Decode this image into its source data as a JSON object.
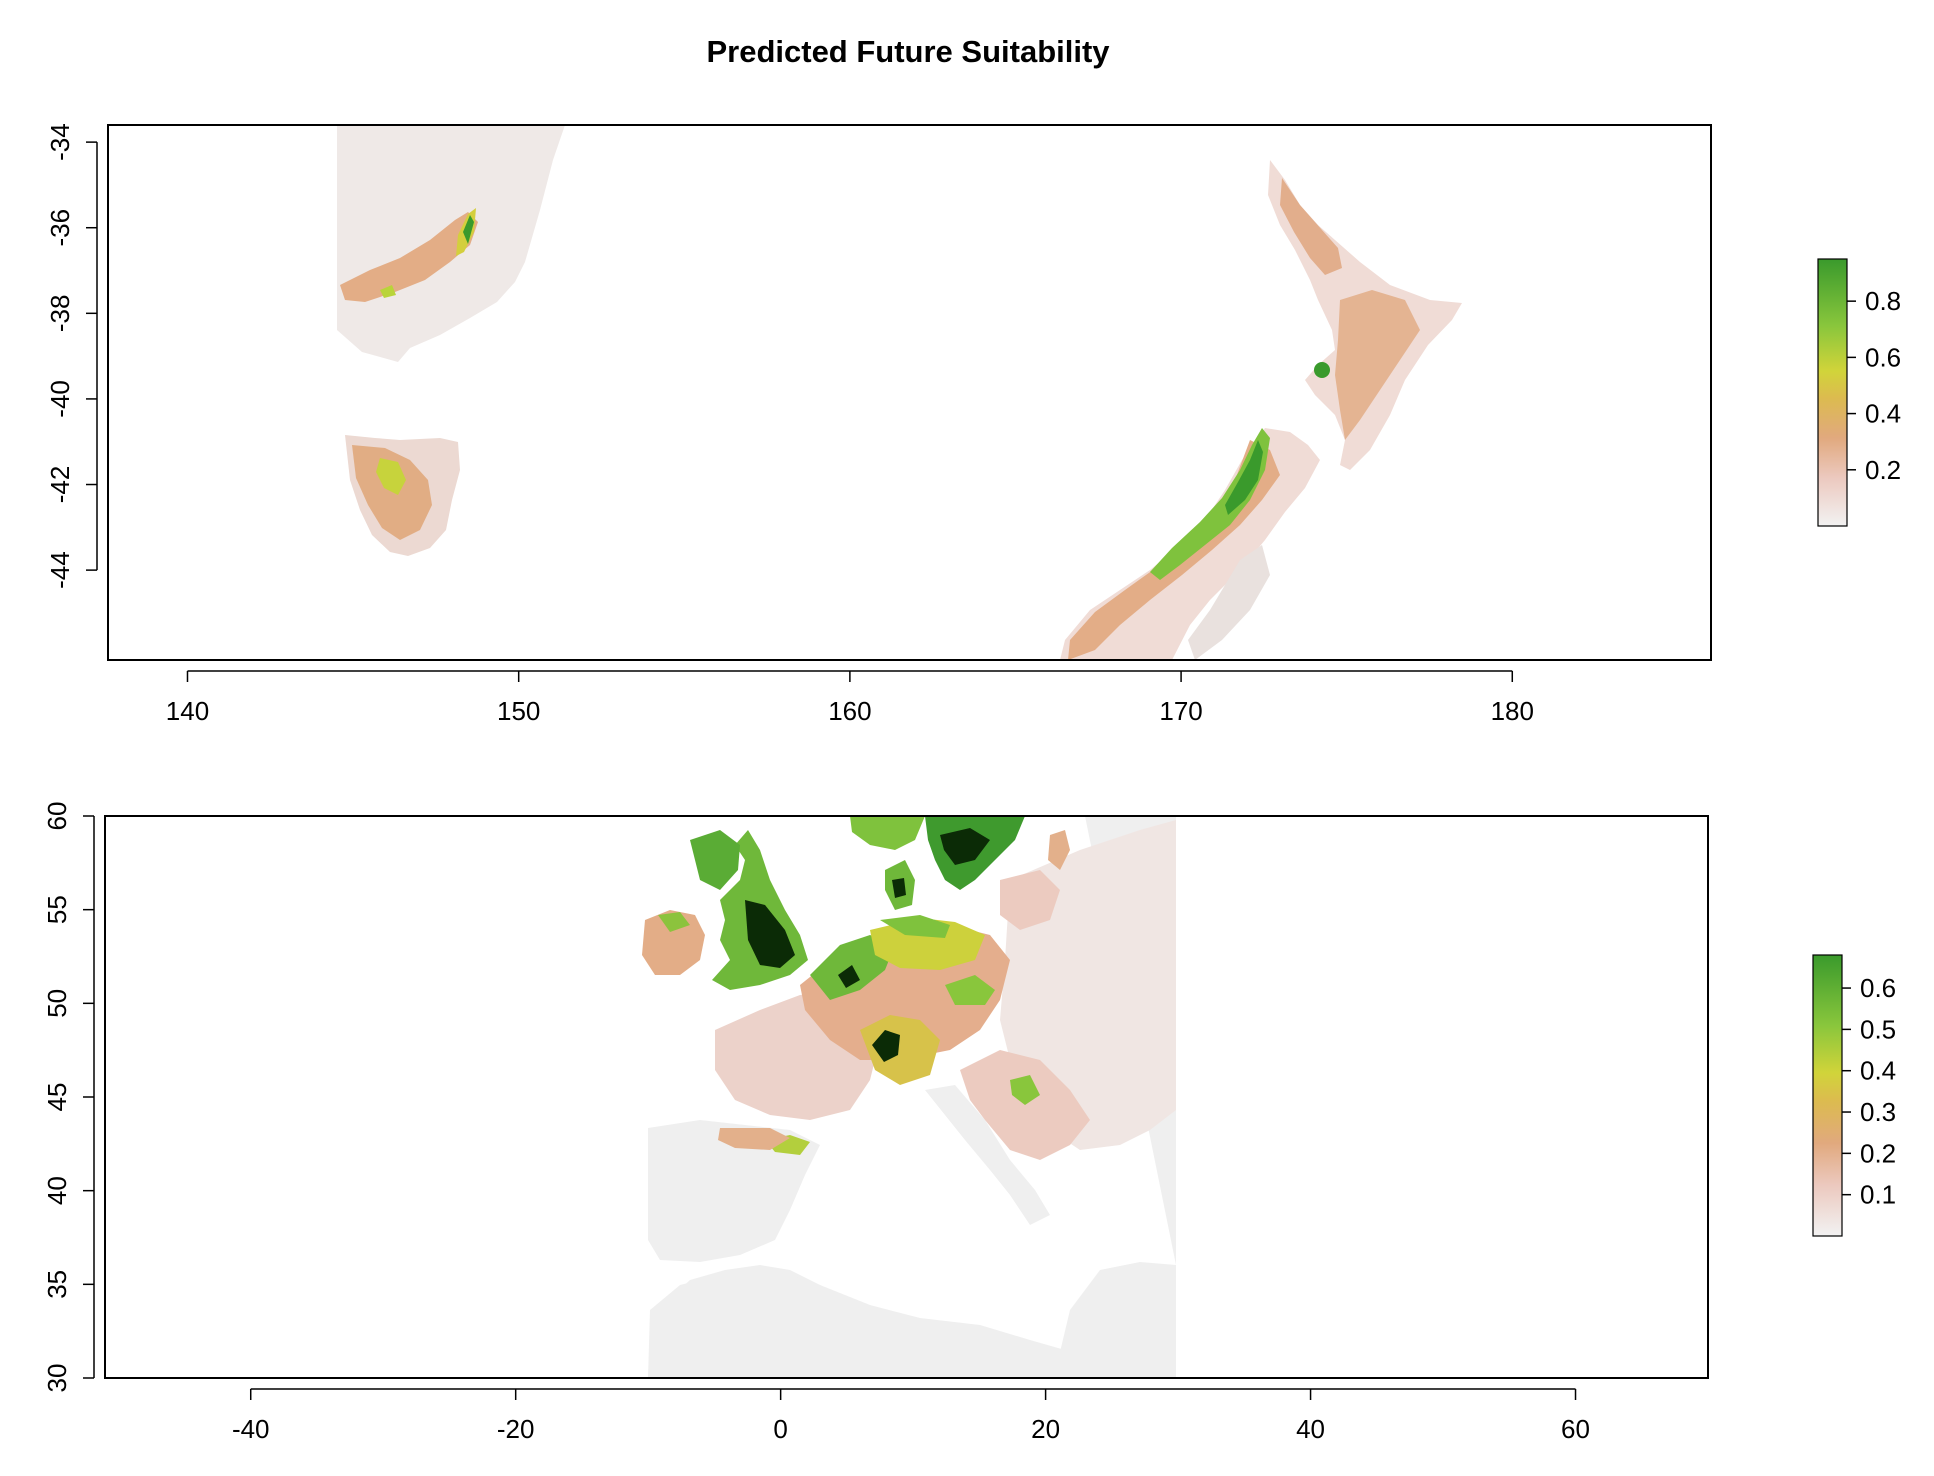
{
  "title": "Predicted Future Suitability",
  "colors": {
    "background": "#ffffff",
    "frame": "#000000",
    "ramp": [
      "#f2f2f2",
      "#ecc9bf",
      "#e1a97e",
      "#dcbb4f",
      "#d1d43a",
      "#89c63c",
      "#3a9a2c"
    ],
    "nodata_land": "#efefef",
    "hotspot": "#0b2b06"
  },
  "maps": [
    {
      "id": "oceania",
      "x_ticks": [
        "140",
        "150",
        "160",
        "170",
        "180"
      ],
      "y_ticks": [
        "-34",
        "-36",
        "-38",
        "-40",
        "-42",
        "-44"
      ],
      "xlim": [
        137.6,
        186
      ],
      "ylim": [
        -46.1,
        -33.6
      ],
      "legend_ticks": [
        "0.8",
        "0.6",
        "0.4",
        "0.2"
      ],
      "legend_range": [
        0,
        0.95
      ]
    },
    {
      "id": "europe",
      "x_ticks": [
        "-40",
        "-20",
        "0",
        "20",
        "40",
        "60"
      ],
      "y_ticks": [
        "60",
        "55",
        "50",
        "45",
        "40",
        "35",
        "30"
      ],
      "xlim": [
        -51,
        70
      ],
      "ylim": [
        30,
        60
      ],
      "legend_ticks": [
        "0.6",
        "0.5",
        "0.4",
        "0.3",
        "0.2",
        "0.1"
      ],
      "legend_range": [
        0,
        0.68
      ]
    }
  ]
}
